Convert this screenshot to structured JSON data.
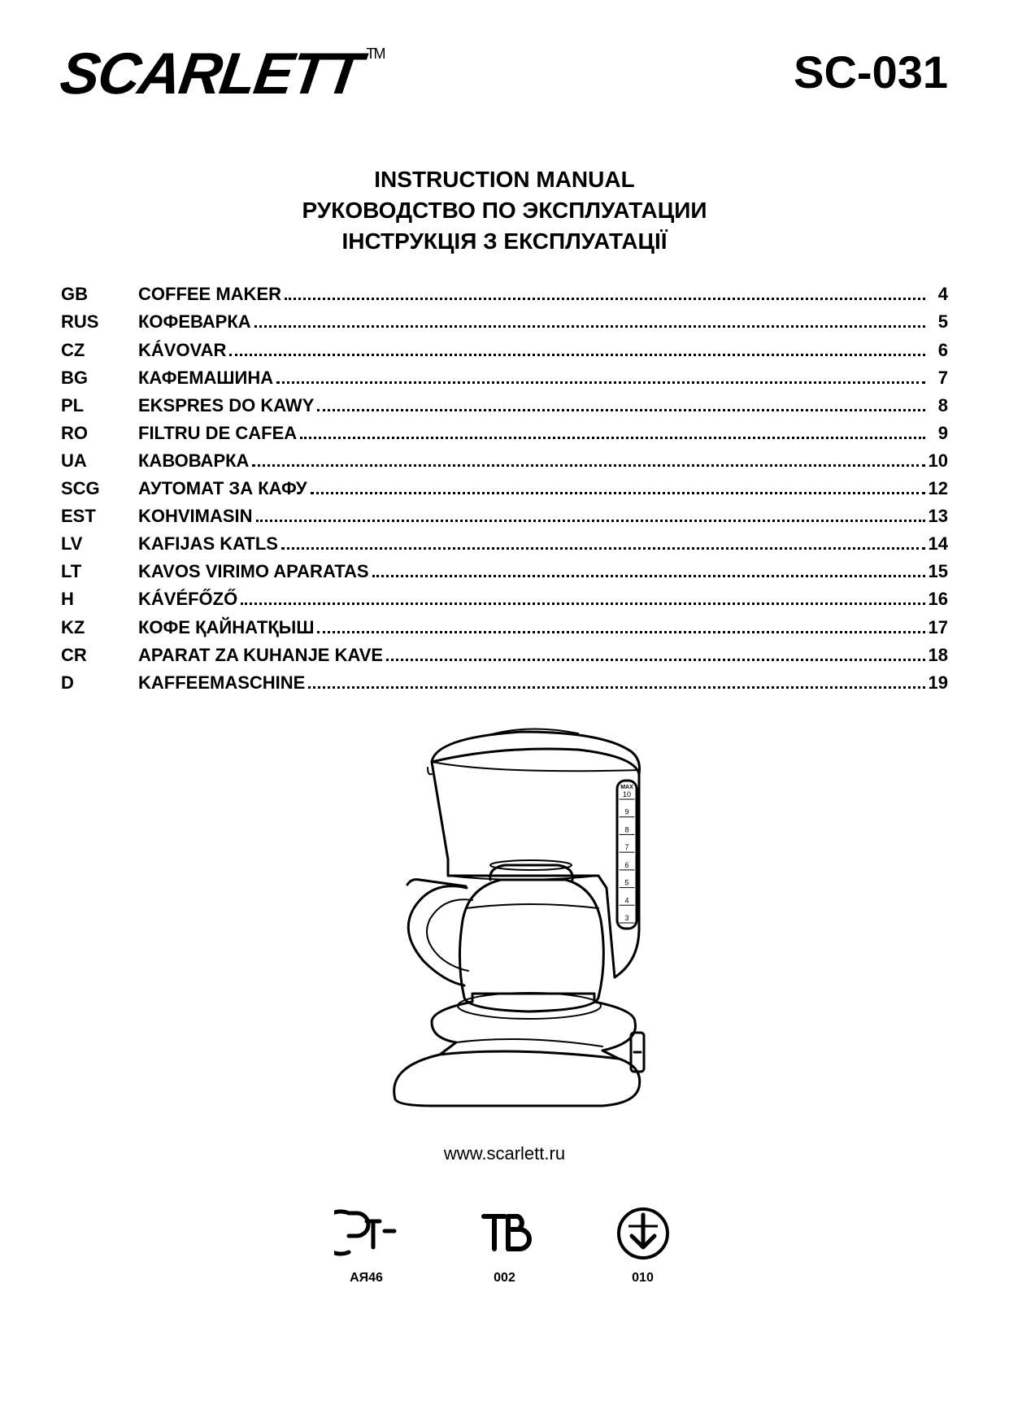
{
  "brand": "SCARLETT",
  "trademark": "TM",
  "model": "SC-031",
  "titles": [
    "INSTRUCTION MANUAL",
    "РУКОВОДСТВО ПО ЭКСПЛУАТАЦИИ",
    "ІНСТРУКЦІЯ З ЕКСПЛУАТАЦІЇ"
  ],
  "toc": [
    {
      "code": "GB",
      "name": "COFFEE MAKER",
      "page": "4"
    },
    {
      "code": "RUS",
      "name": "КОФЕВАРКА",
      "page": "5"
    },
    {
      "code": "CZ",
      "name": "KÁVOVAR",
      "page": "6"
    },
    {
      "code": "BG",
      "name": "КАФЕМАШИНА",
      "page": "7"
    },
    {
      "code": "PL",
      "name": "EKSPRES DO KAWY",
      "page": "8"
    },
    {
      "code": "RO",
      "name": "FILTRU DE CAFEA",
      "page": "9"
    },
    {
      "code": "UA",
      "name": "КАВОВАРКА",
      "page": "10"
    },
    {
      "code": "SCG",
      "name": "АУТОМАТ ЗА КАФУ",
      "page": "12"
    },
    {
      "code": "EST",
      "name": "KOHVIMASIN",
      "page": "13"
    },
    {
      "code": "LV",
      "name": "KAFIJAS KATLS",
      "page": "14"
    },
    {
      "code": "LT",
      "name": "KAVOS VIRIMO APARATAS",
      "page": "15"
    },
    {
      "code": "H",
      "name": "KÁVÉFŐZŐ",
      "page": "16"
    },
    {
      "code": "KZ",
      "name": "КОФЕ ҚАЙНАТҚЫШ",
      "page": "17"
    },
    {
      "code": "CR",
      "name": "APARAT ZA KUHANJE KAVE",
      "page": "18"
    },
    {
      "code": "D",
      "name": "KAFFEEMASCHINE",
      "page": "19"
    }
  ],
  "water_scale": {
    "top_label": "MAX",
    "levels": [
      "10",
      "9",
      "8",
      "7",
      "6",
      "5",
      "4",
      "3"
    ]
  },
  "url": "www.scarlett.ru",
  "certs": [
    {
      "code": "АЯ46"
    },
    {
      "code": "002"
    },
    {
      "code": "010"
    }
  ],
  "colors": {
    "text": "#000000",
    "background": "#ffffff",
    "stroke": "#000000"
  }
}
